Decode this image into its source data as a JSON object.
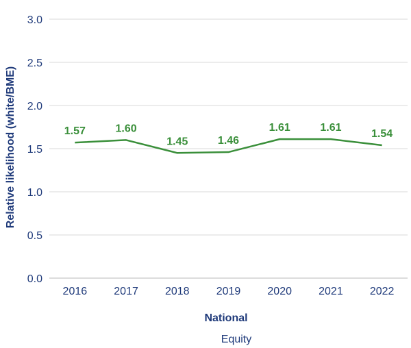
{
  "chart_data": {
    "type": "line",
    "ylabel": "Relative likelihood (white/BME)",
    "categories": [
      "2016",
      "2017",
      "2018",
      "2019",
      "2020",
      "2021",
      "2022"
    ],
    "series": [
      {
        "name": "Equity",
        "values": [
          1.57,
          1.6,
          1.45,
          1.46,
          1.61,
          1.61,
          1.54
        ],
        "color": "#3a8f3a"
      }
    ],
    "data_labels": [
      "1.57",
      "1.60",
      "1.45",
      "1.46",
      "1.61",
      "1.61",
      "1.54"
    ],
    "yticks": [
      "0.0",
      "0.5",
      "1.0",
      "1.5",
      "2.0",
      "2.5",
      "3.0"
    ],
    "ylim": [
      0,
      3
    ],
    "grid": true,
    "legend": {
      "title": "National",
      "placement": "bottom"
    }
  }
}
